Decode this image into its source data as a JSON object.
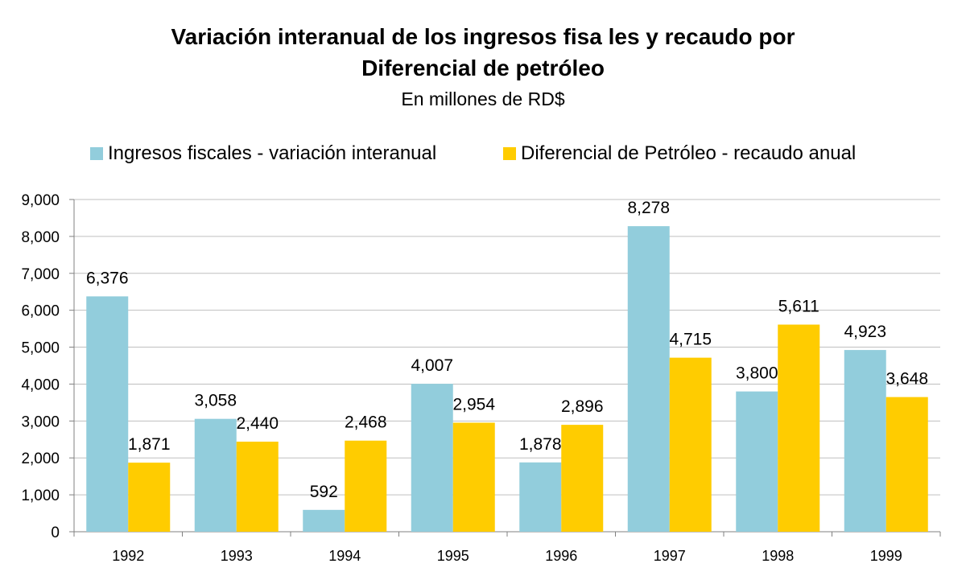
{
  "chart_data": {
    "type": "bar",
    "title": "Variación interanual de los ingresos fisa  les y recaudo por",
    "title_line2": "Diferencial de petróleo",
    "subtitle": "En millones de RD$",
    "categories": [
      "1992",
      "1993",
      "1994",
      "1995",
      "1996",
      "1997",
      "1998",
      "1999"
    ],
    "series": [
      {
        "name": "Ingresos fiscales - variación interanual",
        "color": "#92CDDC",
        "values": [
          6376,
          3058,
          592,
          4007,
          1878,
          8278,
          3800,
          4923
        ],
        "labels": [
          "6,376",
          "3,058",
          "592",
          "4,007",
          "1,878",
          "8,278",
          "3,800",
          "4,923"
        ]
      },
      {
        "name": "Diferencial de Petróleo - recaudo anual",
        "color": "#FFCC00",
        "values": [
          1871,
          2440,
          2468,
          2954,
          2896,
          4715,
          5611,
          3648
        ],
        "labels": [
          "1,871",
          "2,440",
          "2,468",
          "2,954",
          "2,896",
          "4,715",
          "5,611",
          "3,648"
        ]
      }
    ],
    "ylim": [
      0,
      9000
    ],
    "yticks": [
      0,
      1000,
      2000,
      3000,
      4000,
      5000,
      6000,
      7000,
      8000,
      9000
    ],
    "ytick_labels": [
      "0",
      "1,000",
      "2,000",
      "3,000",
      "4,000",
      "5,000",
      "6,000",
      "7,000",
      "8,000",
      "9,000"
    ],
    "grid": true,
    "legend": "top"
  }
}
